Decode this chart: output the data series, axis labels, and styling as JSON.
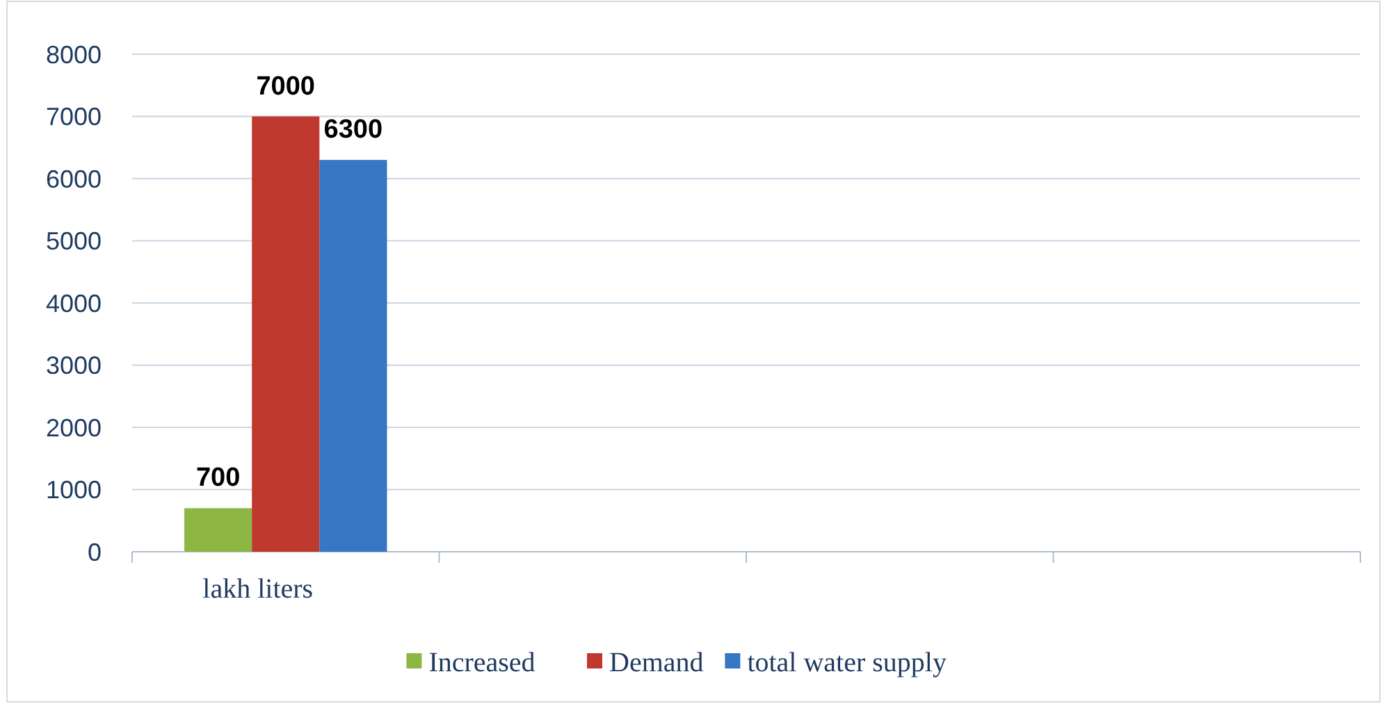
{
  "chart_data": {
    "type": "bar",
    "categories": [
      "lakh liters",
      null,
      null,
      null
    ],
    "series": [
      {
        "name": "Increased",
        "color": "#8db644",
        "values": [
          700,
          null,
          null,
          null
        ]
      },
      {
        "name": "Demand",
        "color": "#c0392f",
        "values": [
          7000,
          null,
          null,
          null
        ]
      },
      {
        "name": "total water supply",
        "color": "#3677c4",
        "values": [
          6300,
          null,
          null,
          null
        ]
      }
    ],
    "ylim": [
      0,
      8000
    ],
    "yticks": [
      0,
      1000,
      2000,
      3000,
      4000,
      5000,
      6000,
      7000,
      8000
    ],
    "grid": "y",
    "legend": "bottom",
    "data_labels": true
  }
}
